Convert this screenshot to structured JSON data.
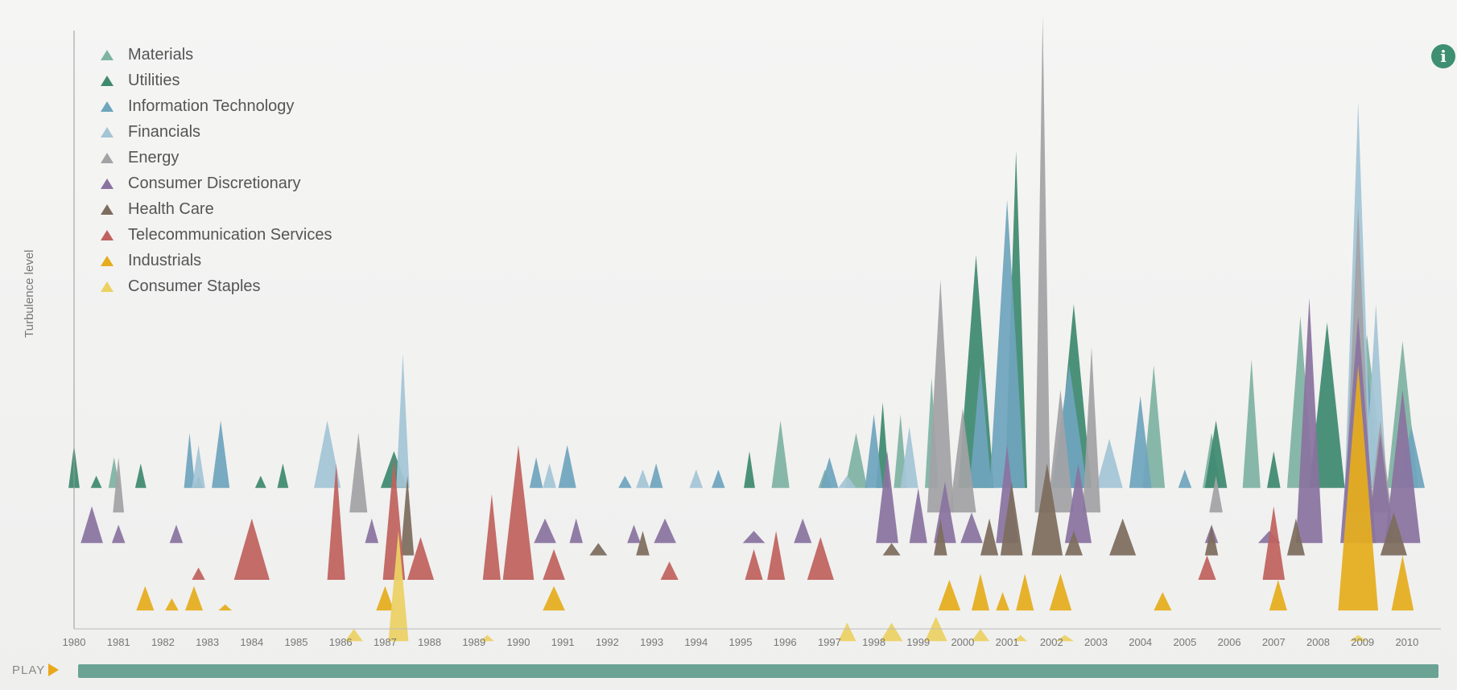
{
  "info_icon": "i",
  "player": {
    "play_label": "PLAY",
    "play_icon": "play-icon",
    "timeline_color": "#6aa393"
  },
  "chart_data": {
    "type": "area",
    "title": "",
    "xlabel": "",
    "ylabel": "Turbulence level",
    "x_ticks": [
      "1980",
      "1981",
      "1982",
      "1983",
      "1984",
      "1985",
      "1986",
      "1987",
      "1988",
      "1989",
      "1990",
      "1991",
      "1992",
      "1993",
      "1994",
      "1995",
      "1996",
      "1997",
      "1998",
      "1999",
      "2000",
      "2001",
      "2002",
      "2003",
      "2004",
      "2005",
      "2006",
      "2007",
      "2008",
      "2009",
      "2010"
    ],
    "xlim": [
      1980,
      2010.4
    ],
    "legend_position": "top-left",
    "grid": false,
    "series": [
      {
        "name": "Materials",
        "color": "#7fb3a2",
        "baseline": 0.77,
        "peaks": [
          [
            1980.9,
            0.05,
            0.25
          ],
          [
            1987.3,
            0.05,
            0.25
          ],
          [
            1995.9,
            0.11,
            0.4
          ],
          [
            1996.9,
            0.03,
            0.3
          ],
          [
            1997.6,
            0.09,
            0.5
          ],
          [
            1998.6,
            0.12,
            0.3
          ],
          [
            1999.3,
            0.18,
            0.3
          ],
          [
            2004.3,
            0.2,
            0.5
          ],
          [
            2005.6,
            0.09,
            0.4
          ],
          [
            2006.5,
            0.21,
            0.4
          ],
          [
            2007.6,
            0.28,
            0.6
          ],
          [
            2009.1,
            0.25,
            0.8
          ],
          [
            2009.9,
            0.24,
            0.7
          ]
        ]
      },
      {
        "name": "Utilities",
        "color": "#3e8a70",
        "baseline": 0.77,
        "peaks": [
          [
            1980.0,
            0.07,
            0.25
          ],
          [
            1980.5,
            0.02,
            0.25
          ],
          [
            1981.5,
            0.04,
            0.25
          ],
          [
            1982.8,
            0.02,
            0.2
          ],
          [
            1984.2,
            0.02,
            0.25
          ],
          [
            1984.7,
            0.04,
            0.25
          ],
          [
            1987.2,
            0.06,
            0.6
          ],
          [
            1995.2,
            0.06,
            0.25
          ],
          [
            1998.2,
            0.14,
            0.3
          ],
          [
            2000.3,
            0.38,
            0.8
          ],
          [
            2001.2,
            0.55,
            0.5
          ],
          [
            2002.5,
            0.3,
            0.8
          ],
          [
            2005.7,
            0.11,
            0.5
          ],
          [
            2007.0,
            0.06,
            0.3
          ],
          [
            2008.2,
            0.27,
            0.8
          ]
        ]
      },
      {
        "name": "Information Technology",
        "color": "#6fa5bd",
        "baseline": 0.77,
        "peaks": [
          [
            1982.6,
            0.09,
            0.25
          ],
          [
            1983.3,
            0.11,
            0.4
          ],
          [
            1990.4,
            0.05,
            0.3
          ],
          [
            1991.1,
            0.07,
            0.4
          ],
          [
            1992.4,
            0.02,
            0.3
          ],
          [
            1993.1,
            0.04,
            0.3
          ],
          [
            1994.5,
            0.03,
            0.3
          ],
          [
            1997.0,
            0.05,
            0.4
          ],
          [
            1998.0,
            0.12,
            0.4
          ],
          [
            2000.4,
            0.2,
            0.5
          ],
          [
            2001.0,
            0.47,
            0.8
          ],
          [
            2002.4,
            0.2,
            0.8
          ],
          [
            2004.0,
            0.15,
            0.5
          ],
          [
            2005.0,
            0.03,
            0.3
          ],
          [
            2009.1,
            0.2,
            0.6
          ],
          [
            2010.1,
            0.1,
            0.6
          ]
        ]
      },
      {
        "name": "Financials",
        "color": "#a4c5d6",
        "baseline": 0.77,
        "peaks": [
          [
            1982.8,
            0.07,
            0.3
          ],
          [
            1985.7,
            0.11,
            0.6
          ],
          [
            1987.4,
            0.22,
            0.3
          ],
          [
            1990.7,
            0.04,
            0.3
          ],
          [
            1992.8,
            0.03,
            0.3
          ],
          [
            1994.0,
            0.03,
            0.3
          ],
          [
            1997.4,
            0.02,
            0.4
          ],
          [
            1998.8,
            0.1,
            0.4
          ],
          [
            2003.3,
            0.08,
            0.6
          ],
          [
            2008.9,
            0.63,
            0.6
          ],
          [
            2009.3,
            0.3,
            0.5
          ]
        ]
      },
      {
        "name": "Energy",
        "color": "#a3a3a6",
        "baseline": 0.81,
        "peaks": [
          [
            1981.0,
            0.09,
            0.25
          ],
          [
            1986.4,
            0.13,
            0.4
          ],
          [
            1999.5,
            0.38,
            0.6
          ],
          [
            2000.0,
            0.17,
            0.6
          ],
          [
            2001.8,
            0.81,
            0.35
          ],
          [
            2002.2,
            0.2,
            0.6
          ],
          [
            2002.9,
            0.27,
            0.4
          ],
          [
            2005.7,
            0.06,
            0.3
          ],
          [
            2008.9,
            0.5,
            0.6
          ],
          [
            2009.4,
            0.15,
            0.5
          ]
        ]
      },
      {
        "name": "Consumer Discretionary",
        "color": "#8a73a0",
        "baseline": 0.86,
        "peaks": [
          [
            1980.4,
            0.06,
            0.5
          ],
          [
            1981.0,
            0.03,
            0.3
          ],
          [
            1982.3,
            0.03,
            0.3
          ],
          [
            1986.7,
            0.04,
            0.3
          ],
          [
            1990.6,
            0.04,
            0.5
          ],
          [
            1991.3,
            0.04,
            0.3
          ],
          [
            1992.6,
            0.03,
            0.3
          ],
          [
            1993.3,
            0.04,
            0.5
          ],
          [
            1995.3,
            0.02,
            0.5
          ],
          [
            1996.4,
            0.04,
            0.4
          ],
          [
            1998.3,
            0.15,
            0.5
          ],
          [
            1999.0,
            0.09,
            0.4
          ],
          [
            1999.6,
            0.1,
            0.5
          ],
          [
            2000.2,
            0.05,
            0.5
          ],
          [
            2001.0,
            0.16,
            0.5
          ],
          [
            2002.6,
            0.13,
            0.6
          ],
          [
            2005.6,
            0.03,
            0.3
          ],
          [
            2006.9,
            0.02,
            0.5
          ],
          [
            2007.8,
            0.4,
            0.6
          ],
          [
            2008.9,
            0.37,
            0.8
          ],
          [
            2009.4,
            0.18,
            0.6
          ],
          [
            2009.9,
            0.25,
            0.8
          ]
        ]
      },
      {
        "name": "Health Care",
        "color": "#7d6d5e",
        "baseline": 0.88,
        "peaks": [
          [
            1987.5,
            0.13,
            0.3
          ],
          [
            1991.8,
            0.02,
            0.4
          ],
          [
            1992.8,
            0.04,
            0.3
          ],
          [
            1998.4,
            0.02,
            0.4
          ],
          [
            1999.5,
            0.06,
            0.3
          ],
          [
            2000.6,
            0.06,
            0.4
          ],
          [
            2001.1,
            0.12,
            0.5
          ],
          [
            2001.9,
            0.15,
            0.7
          ],
          [
            2002.5,
            0.04,
            0.4
          ],
          [
            2003.6,
            0.06,
            0.6
          ],
          [
            2005.6,
            0.05,
            0.3
          ],
          [
            2007.5,
            0.06,
            0.4
          ],
          [
            2009.7,
            0.07,
            0.6
          ]
        ]
      },
      {
        "name": "Telecommunication Services",
        "color": "#c0625e",
        "baseline": 0.92,
        "peaks": [
          [
            1982.8,
            0.02,
            0.3
          ],
          [
            1984.0,
            0.1,
            0.8
          ],
          [
            1985.9,
            0.19,
            0.4
          ],
          [
            1987.2,
            0.2,
            0.5
          ],
          [
            1987.8,
            0.07,
            0.6
          ],
          [
            1989.4,
            0.14,
            0.4
          ],
          [
            1990.0,
            0.22,
            0.7
          ],
          [
            1990.8,
            0.05,
            0.5
          ],
          [
            1993.4,
            0.03,
            0.4
          ],
          [
            1995.3,
            0.05,
            0.4
          ],
          [
            1995.8,
            0.08,
            0.4
          ],
          [
            1996.8,
            0.07,
            0.6
          ],
          [
            2005.5,
            0.04,
            0.4
          ],
          [
            2007.0,
            0.12,
            0.5
          ]
        ]
      },
      {
        "name": "Industrials",
        "color": "#e5ad1d",
        "baseline": 0.97,
        "peaks": [
          [
            1981.6,
            0.04,
            0.4
          ],
          [
            1982.2,
            0.02,
            0.3
          ],
          [
            1982.7,
            0.04,
            0.4
          ],
          [
            1983.4,
            0.01,
            0.3
          ],
          [
            1987.0,
            0.04,
            0.4
          ],
          [
            1990.8,
            0.04,
            0.5
          ],
          [
            1999.7,
            0.05,
            0.5
          ],
          [
            2000.4,
            0.06,
            0.4
          ],
          [
            2000.9,
            0.03,
            0.3
          ],
          [
            2001.4,
            0.06,
            0.4
          ],
          [
            2002.2,
            0.06,
            0.5
          ],
          [
            2004.5,
            0.03,
            0.4
          ],
          [
            2007.1,
            0.05,
            0.4
          ],
          [
            2008.9,
            0.4,
            0.9
          ],
          [
            2009.9,
            0.09,
            0.5
          ]
        ]
      },
      {
        "name": "Consumer Staples",
        "color": "#ecd163",
        "baseline": 1.02,
        "peaks": [
          [
            1986.3,
            0.02,
            0.4
          ],
          [
            1987.3,
            0.18,
            0.45
          ],
          [
            1989.3,
            0.01,
            0.3
          ],
          [
            1997.4,
            0.03,
            0.4
          ],
          [
            1998.4,
            0.03,
            0.5
          ],
          [
            1999.4,
            0.04,
            0.5
          ],
          [
            2000.4,
            0.02,
            0.4
          ],
          [
            2001.3,
            0.01,
            0.3
          ],
          [
            2002.3,
            0.01,
            0.4
          ],
          [
            2008.9,
            0.01,
            0.4
          ]
        ]
      }
    ]
  }
}
